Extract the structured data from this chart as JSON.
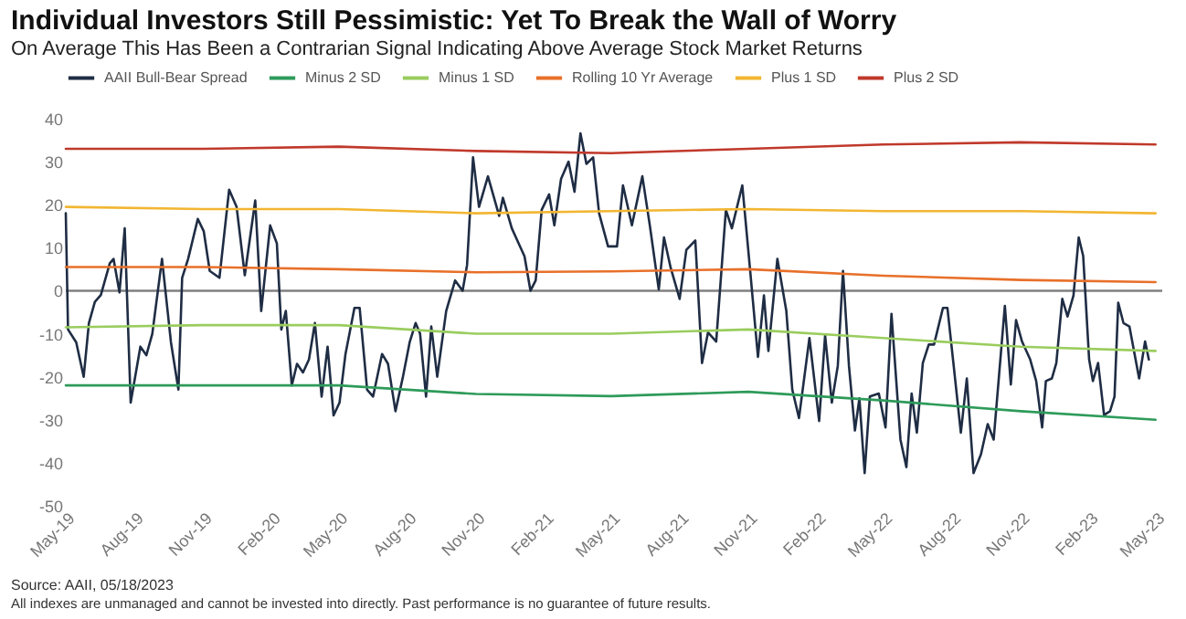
{
  "chart_data": {
    "type": "line",
    "title": "Individual Investors Still Pessimistic: Yet To Break the Wall of Worry",
    "subtitle": "On Average This Has Been a Contrarian Signal Indicating Above Average Stock Market Returns",
    "ylim": [
      -50,
      40
    ],
    "yticks": [
      -50,
      -40,
      -30,
      -20,
      -10,
      0,
      10,
      20,
      30,
      40
    ],
    "xlim": [
      "2019-05-01",
      "2023-05-10"
    ],
    "xticks": [
      {
        "value": "2019-05-01",
        "label": "May-19"
      },
      {
        "value": "2019-08-01",
        "label": "Aug-19"
      },
      {
        "value": "2019-11-01",
        "label": "Nov-19"
      },
      {
        "value": "2020-02-01",
        "label": "Feb-20"
      },
      {
        "value": "2020-05-01",
        "label": "May-20"
      },
      {
        "value": "2020-08-01",
        "label": "Aug-20"
      },
      {
        "value": "2020-11-01",
        "label": "Nov-20"
      },
      {
        "value": "2021-02-01",
        "label": "Feb-21"
      },
      {
        "value": "2021-05-01",
        "label": "May-21"
      },
      {
        "value": "2021-08-01",
        "label": "Aug-21"
      },
      {
        "value": "2021-11-01",
        "label": "Nov-21"
      },
      {
        "value": "2022-02-01",
        "label": "Feb-22"
      },
      {
        "value": "2022-05-01",
        "label": "May-22"
      },
      {
        "value": "2022-08-01",
        "label": "Aug-22"
      },
      {
        "value": "2022-11-01",
        "label": "Nov-22"
      },
      {
        "value": "2023-02-01",
        "label": "Feb-23"
      },
      {
        "value": "2023-05-01",
        "label": "May-23"
      }
    ],
    "grid": false,
    "legend": "top",
    "line_style": "solid",
    "marker": "none",
    "ref_lines": [
      {
        "axis": "y",
        "value": 0,
        "color": "#808080"
      }
    ],
    "annotations": [
      "Source: AAII, 05/18/2023",
      "All indexes are unmanaged and cannot be invested into directly. Past performance is no guarantee of future results."
    ],
    "series": [
      {
        "name": "AAII Bull-Bear Spread",
        "color": "#1f2d44",
        "x": [
          "2019-05-01",
          "2019-05-04",
          "2019-05-15",
          "2019-05-25",
          "2019-06-01",
          "2019-06-09",
          "2019-06-17",
          "2019-06-29",
          "2019-07-04",
          "2019-07-12",
          "2019-07-19",
          "2019-07-27",
          "2019-08-09",
          "2019-08-17",
          "2019-08-25",
          "2019-09-07",
          "2019-09-19",
          "2019-09-29",
          "2019-10-04",
          "2019-10-12",
          "2019-10-25",
          "2019-11-02",
          "2019-11-10",
          "2019-11-23",
          "2019-12-06",
          "2019-12-16",
          "2019-12-27",
          "2020-01-10",
          "2020-01-18",
          "2020-01-30",
          "2020-02-08",
          "2020-02-14",
          "2020-02-20",
          "2020-02-28",
          "2020-03-06",
          "2020-03-14",
          "2020-03-22",
          "2020-03-30",
          "2020-04-08",
          "2020-04-16",
          "2020-04-24",
          "2020-05-02",
          "2020-05-10",
          "2020-05-22",
          "2020-05-29",
          "2020-06-08",
          "2020-06-16",
          "2020-06-28",
          "2020-07-06",
          "2020-07-16",
          "2020-07-26",
          "2020-08-04",
          "2020-08-12",
          "2020-08-18",
          "2020-08-26",
          "2020-09-02",
          "2020-09-10",
          "2020-09-22",
          "2020-10-04",
          "2020-10-14",
          "2020-10-20",
          "2020-10-28",
          "2020-11-05",
          "2020-11-17",
          "2020-12-02",
          "2020-12-07",
          "2020-12-19",
          "2021-01-05",
          "2021-01-13",
          "2021-01-20",
          "2021-01-28",
          "2021-02-07",
          "2021-02-14",
          "2021-02-23",
          "2021-03-05",
          "2021-03-13",
          "2021-03-21",
          "2021-03-29",
          "2021-04-07",
          "2021-04-15",
          "2021-04-27",
          "2021-05-09",
          "2021-05-17",
          "2021-05-29",
          "2021-06-12",
          "2021-06-22",
          "2021-07-04",
          "2021-07-11",
          "2021-07-20",
          "2021-08-01",
          "2021-08-10",
          "2021-08-22",
          "2021-08-31",
          "2021-09-08",
          "2021-09-19",
          "2021-10-02",
          "2021-10-10",
          "2021-10-24",
          "2021-11-04",
          "2021-11-14",
          "2021-11-22",
          "2021-11-28",
          "2021-12-10",
          "2021-12-22",
          "2021-12-30",
          "2022-01-08",
          "2022-01-22",
          "2022-02-04",
          "2022-02-12",
          "2022-02-21",
          "2022-03-01",
          "2022-03-08",
          "2022-03-16",
          "2022-03-24",
          "2022-03-30",
          "2022-04-06",
          "2022-04-13",
          "2022-04-25",
          "2022-05-04",
          "2022-05-12",
          "2022-05-24",
          "2022-06-01",
          "2022-06-08",
          "2022-06-15",
          "2022-06-23",
          "2022-07-01",
          "2022-07-08",
          "2022-07-20",
          "2022-07-26",
          "2022-08-03",
          "2022-08-13",
          "2022-08-21",
          "2022-08-30",
          "2022-09-09",
          "2022-09-18",
          "2022-09-26",
          "2022-10-11",
          "2022-10-19",
          "2022-10-26",
          "2022-11-03",
          "2022-11-14",
          "2022-11-22",
          "2022-11-30",
          "2022-12-05",
          "2022-12-13",
          "2022-12-19",
          "2022-12-27",
          "2023-01-03",
          "2023-01-11",
          "2023-01-18",
          "2023-01-24",
          "2023-02-01",
          "2023-02-06",
          "2023-02-13",
          "2023-02-21",
          "2023-03-01",
          "2023-03-07",
          "2023-03-12",
          "2023-03-19",
          "2023-03-27",
          "2023-04-09",
          "2023-04-17",
          "2023-04-22"
        ],
        "values": [
          18,
          -9,
          -12,
          -20,
          -7.5,
          -2.6,
          -1,
          6.4,
          7.4,
          -0.4,
          14.5,
          -26,
          -13,
          -15,
          -10,
          7.4,
          -12,
          -23,
          3,
          7.4,
          16.7,
          13.8,
          4.6,
          3,
          23.5,
          19.5,
          3.6,
          21,
          -4.7,
          15.2,
          11,
          -9,
          -4.7,
          -22,
          -17,
          -19,
          -16,
          -7.5,
          -24.6,
          -13,
          -29,
          -26,
          -14.7,
          -4,
          -4,
          -23,
          -24.6,
          -14.7,
          -17,
          -28,
          -20,
          -12,
          -7.5,
          -10,
          -24.6,
          -8.3,
          -20,
          -4.7,
          2.4,
          0,
          6,
          31,
          19.5,
          26.6,
          17.4,
          21.6,
          14.5,
          8,
          0,
          2.4,
          18.8,
          22.4,
          15.2,
          26,
          30,
          23,
          36.6,
          29.5,
          31,
          18,
          10.3,
          10.3,
          24.5,
          15.2,
          26.6,
          15.2,
          0.3,
          12.4,
          5.3,
          -1.9,
          9.5,
          11.7,
          -16.8,
          -9.7,
          -11.8,
          18.8,
          14.5,
          24.5,
          3.8,
          -15.4,
          -1.1,
          -14,
          7.4,
          -4.7,
          -23,
          -29.6,
          -11,
          -30.3,
          -10.4,
          -26,
          -17.5,
          4.6,
          -17.5,
          -32.5,
          -25,
          -42.4,
          -24.6,
          -23.9,
          -31.8,
          -5.4,
          -34.6,
          -41,
          -23.9,
          -33,
          -16.8,
          -12.5,
          -12.5,
          -4,
          -4,
          -16.8,
          -33,
          -20.4,
          -42.4,
          -38,
          -31,
          -34.6,
          -3.5,
          -21.8,
          -6.8,
          -11.8,
          -16,
          -21,
          -31.8,
          -21,
          -20.4,
          -16.8,
          -1.9,
          -6,
          -1.1,
          12.4,
          8.1,
          -16,
          -21,
          -16.8,
          -28.9,
          -28,
          -24.6,
          -2.8,
          -7.5,
          -8.3,
          -20.4,
          -11.8,
          -16
        ]
      },
      {
        "name": "Minus 2 SD",
        "color": "#2e9b5a",
        "x": [
          "2019-05-01",
          "2019-11-01",
          "2020-05-01",
          "2020-11-01",
          "2021-05-01",
          "2021-11-01",
          "2022-05-01",
          "2022-11-01",
          "2023-05-01"
        ],
        "values": [
          -22,
          -22,
          -22,
          -24,
          -24.5,
          -23.5,
          -25.5,
          -28,
          -30
        ]
      },
      {
        "name": "Minus 1 SD",
        "color": "#9acd5e",
        "x": [
          "2019-05-01",
          "2019-11-01",
          "2020-05-01",
          "2020-11-01",
          "2021-05-01",
          "2021-11-01",
          "2022-05-01",
          "2022-11-01",
          "2023-05-01"
        ],
        "values": [
          -8.5,
          -8,
          -8,
          -10,
          -10,
          -9,
          -11,
          -13,
          -14
        ]
      },
      {
        "name": "Rolling 10 Yr Average",
        "color": "#e8702a",
        "x": [
          "2019-05-01",
          "2019-11-01",
          "2020-05-01",
          "2020-11-01",
          "2021-05-01",
          "2021-11-01",
          "2022-05-01",
          "2022-11-01",
          "2023-05-01"
        ],
        "values": [
          5.5,
          5.5,
          5,
          4.3,
          4.5,
          5,
          3.5,
          2.5,
          2
        ]
      },
      {
        "name": "Plus 1 SD",
        "color": "#f2b632",
        "x": [
          "2019-05-01",
          "2019-11-01",
          "2020-05-01",
          "2020-11-01",
          "2021-05-01",
          "2021-11-01",
          "2022-05-01",
          "2022-11-01",
          "2023-05-01"
        ],
        "values": [
          19.5,
          19,
          19,
          18,
          18.5,
          19,
          18.5,
          18.5,
          18
        ]
      },
      {
        "name": "Plus 2 SD",
        "color": "#c0392b",
        "x": [
          "2019-05-01",
          "2019-11-01",
          "2020-05-01",
          "2020-11-01",
          "2021-05-01",
          "2021-11-01",
          "2022-05-01",
          "2022-11-01",
          "2023-05-01"
        ],
        "values": [
          33,
          33,
          33.5,
          32.5,
          32,
          33,
          34,
          34.5,
          34
        ]
      }
    ]
  }
}
